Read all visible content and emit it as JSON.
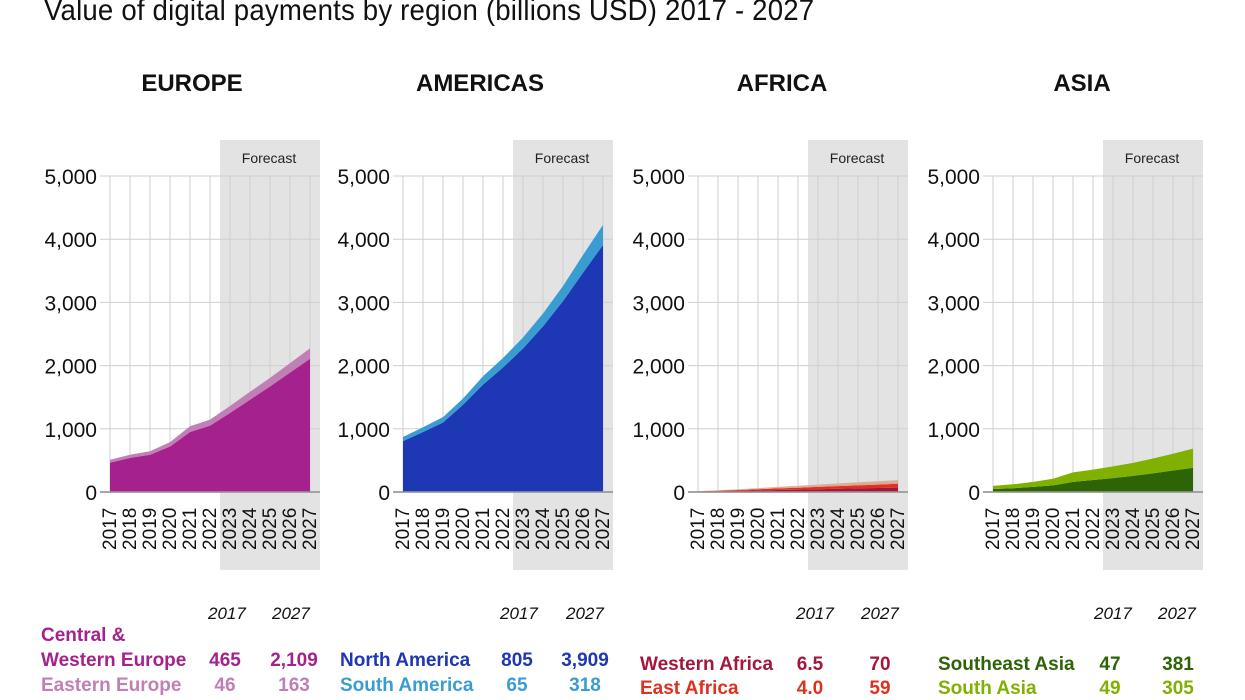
{
  "title": "Value of digital payments by region (billions USD) 2017 - 2027",
  "forecast_label": "Forecast",
  "legend_years": [
    "2017",
    "2027"
  ],
  "chart_data": [
    {
      "type": "area",
      "stacked": true,
      "title": "EUROPE",
      "xlabel": "",
      "ylabel": "",
      "x": [
        "2017",
        "2018",
        "2019",
        "2020",
        "2021",
        "2022",
        "2023",
        "2024",
        "2025",
        "2026",
        "2027"
      ],
      "yticks": [
        "0",
        "1,000",
        "2,000",
        "3,000",
        "4,000",
        "5,000"
      ],
      "ylim": [
        0,
        5000
      ],
      "forecast_from": "2022",
      "grid": true,
      "series": [
        {
          "name": "Central & Western Europe",
          "color": "#a5228e",
          "values": [
            465,
            540,
            590,
            720,
            950,
            1050,
            1250,
            1460,
            1670,
            1890,
            2109
          ]
        },
        {
          "name": "Eastern Europe",
          "color": "#c07fb5",
          "values": [
            46,
            50,
            55,
            70,
            90,
            95,
            110,
            125,
            135,
            150,
            163
          ]
        }
      ]
    },
    {
      "type": "area",
      "stacked": true,
      "title": "AMERICAS",
      "xlabel": "",
      "ylabel": "",
      "x": [
        "2017",
        "2018",
        "2019",
        "2020",
        "2021",
        "2022",
        "2023",
        "2024",
        "2025",
        "2026",
        "2027"
      ],
      "yticks": [
        "0",
        "1,000",
        "2,000",
        "3,000",
        "4,000",
        "5,000"
      ],
      "ylim": [
        0,
        5000
      ],
      "forecast_from": "2022",
      "grid": true,
      "series": [
        {
          "name": "North America",
          "color": "#1e37b4",
          "values": [
            805,
            950,
            1100,
            1380,
            1700,
            1970,
            2270,
            2620,
            3020,
            3470,
            3909
          ]
        },
        {
          "name": "South America",
          "color": "#3a9dd2",
          "values": [
            65,
            75,
            85,
            100,
            130,
            150,
            175,
            205,
            240,
            280,
            318
          ]
        }
      ]
    },
    {
      "type": "area",
      "stacked": true,
      "title": "AFRICA",
      "xlabel": "",
      "ylabel": "",
      "x": [
        "2017",
        "2018",
        "2019",
        "2020",
        "2021",
        "2022",
        "2023",
        "2024",
        "2025",
        "2026",
        "2027"
      ],
      "yticks": [
        "0",
        "1,000",
        "2,000",
        "3,000",
        "4,000",
        "5,000"
      ],
      "ylim": [
        0,
        5000
      ],
      "forecast_from": "2022",
      "grid": true,
      "series": [
        {
          "name": "Western Africa",
          "color": "#a5163c",
          "values": [
            6.5,
            12,
            18,
            25,
            32,
            38,
            45,
            52,
            58,
            64,
            70
          ]
        },
        {
          "name": "East Africa",
          "color": "#e0301e",
          "values": [
            4.0,
            8,
            13,
            19,
            25,
            30,
            36,
            42,
            47,
            53,
            59
          ]
        },
        {
          "name": "",
          "color": "#e49d9d",
          "values": [
            2,
            4,
            6,
            9,
            12,
            15,
            18,
            21,
            24,
            27,
            30
          ]
        },
        {
          "name": "",
          "color": "#d2b48c",
          "values": [
            2,
            4,
            6,
            9,
            12,
            15,
            18,
            21,
            24,
            27,
            30
          ]
        }
      ]
    },
    {
      "type": "area",
      "stacked": true,
      "title": "ASIA",
      "xlabel": "",
      "ylabel": "",
      "x": [
        "2017",
        "2018",
        "2019",
        "2020",
        "2021",
        "2022",
        "2023",
        "2024",
        "2025",
        "2026",
        "2027"
      ],
      "yticks": [
        "0",
        "1,000",
        "2,000",
        "3,000",
        "4,000",
        "5,000"
      ],
      "ylim": [
        0,
        5000
      ],
      "forecast_from": "2022",
      "grid": true,
      "series": [
        {
          "name": "Southeast Asia",
          "color": "#2d6405",
          "values": [
            47,
            60,
            80,
            105,
            160,
            190,
            220,
            255,
            295,
            340,
            381
          ]
        },
        {
          "name": "South Asia",
          "color": "#80b100",
          "values": [
            49,
            62,
            80,
            105,
            150,
            165,
            185,
            205,
            235,
            265,
            305
          ]
        }
      ]
    }
  ],
  "legends": [
    {
      "rows": [
        {
          "label_lines": [
            "Central &",
            "Western Europe"
          ],
          "v2017": "465",
          "v2027": "2,109",
          "color": "#a5228e"
        },
        {
          "label_lines": [
            "Eastern Europe"
          ],
          "v2017": "46",
          "v2027": "163",
          "color": "#c07fb5"
        }
      ]
    },
    {
      "rows": [
        {
          "label_lines": [
            "North America"
          ],
          "v2017": "805",
          "v2027": "3,909",
          "color": "#1e37b4"
        },
        {
          "label_lines": [
            "South America"
          ],
          "v2017": "65",
          "v2027": "318",
          "color": "#3a9dd2"
        }
      ]
    },
    {
      "rows": [
        {
          "label_lines": [
            "Western Africa"
          ],
          "v2017": "6.5",
          "v2027": "70",
          "color": "#a5163c"
        },
        {
          "label_lines": [
            "East Africa"
          ],
          "v2017": "4.0",
          "v2027": "59",
          "color": "#e0301e"
        }
      ]
    },
    {
      "rows": [
        {
          "label_lines": [
            "Southeast Asia"
          ],
          "v2017": "47",
          "v2027": "381",
          "color": "#2d6405"
        },
        {
          "label_lines": [
            "South Asia"
          ],
          "v2017": "49",
          "v2027": "305",
          "color": "#80b100"
        }
      ]
    }
  ]
}
